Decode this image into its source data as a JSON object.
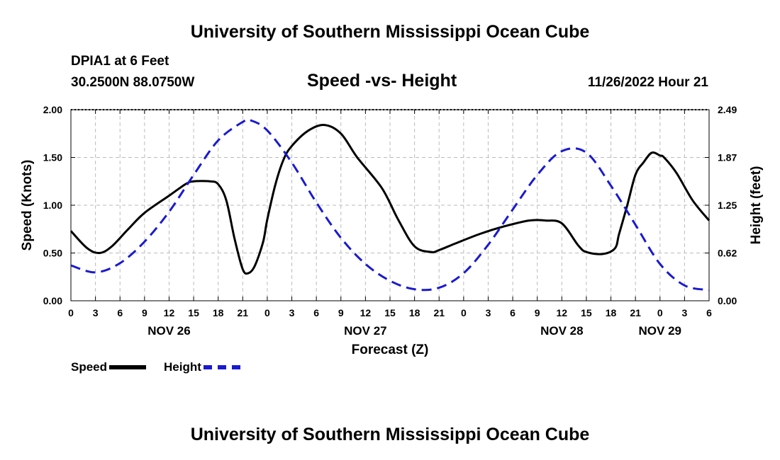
{
  "header": {
    "title": "University of Southern Mississippi Ocean Cube",
    "station": "DPIA1 at 6 Feet",
    "coords": "30.2500N  88.0750W",
    "subtitle": "Speed -vs- Height",
    "datetime": "11/26/2022 Hour 21"
  },
  "footer": {
    "title": "University of Southern Mississippi Ocean Cube"
  },
  "chart_data": {
    "type": "line",
    "xlabel": "Forecast (Z)",
    "ylabel_left": "Speed (Knots)",
    "ylabel_right": "Height (feet)",
    "x_unit": "hours since Nov 26 00Z",
    "xlim": [
      0,
      78
    ],
    "ylim_left": [
      0,
      2
    ],
    "ylim_right": [
      0,
      2.49
    ],
    "y_ticks_left": [
      "0.00",
      "0.50",
      "1.00",
      "1.50",
      "2.00"
    ],
    "y_ticks_right": [
      "0.00",
      "0.62",
      "1.25",
      "1.87",
      "2.49"
    ],
    "x_ticks": [
      "0",
      "3",
      "6",
      "9",
      "12",
      "15",
      "18",
      "21",
      "0",
      "3",
      "6",
      "9",
      "12",
      "15",
      "18",
      "21",
      "0",
      "3",
      "6",
      "9",
      "12",
      "15",
      "18",
      "21",
      "0",
      "3",
      "6"
    ],
    "day_labels": [
      {
        "label": "NOV 26",
        "hour": 12
      },
      {
        "label": "NOV 27",
        "hour": 36
      },
      {
        "label": "NOV 28",
        "hour": 60
      },
      {
        "label": "NOV 29",
        "hour": 72
      }
    ],
    "grid": true,
    "series": [
      {
        "name": "Speed",
        "color": "#000000",
        "style": "solid",
        "axis": "left",
        "x": [
          0,
          2,
          3.5,
          5,
          7,
          9,
          12,
          14,
          15,
          17,
          18,
          19,
          20,
          21,
          21.7,
          22.5,
          23.5,
          24,
          25,
          26,
          27,
          29,
          31,
          33,
          35,
          38,
          40,
          42,
          44,
          45,
          47,
          50,
          53,
          56,
          58,
          60,
          62,
          63,
          65,
          66.5,
          67,
          68,
          69,
          70,
          71,
          72,
          72.5,
          74,
          76,
          78
        ],
        "y": [
          0.73,
          0.55,
          0.5,
          0.57,
          0.75,
          0.92,
          1.1,
          1.22,
          1.25,
          1.25,
          1.22,
          1.05,
          0.65,
          0.33,
          0.29,
          0.37,
          0.62,
          0.85,
          1.22,
          1.48,
          1.62,
          1.78,
          1.84,
          1.75,
          1.5,
          1.18,
          0.85,
          0.57,
          0.51,
          0.53,
          0.6,
          0.7,
          0.78,
          0.84,
          0.84,
          0.81,
          0.58,
          0.51,
          0.49,
          0.55,
          0.7,
          1.0,
          1.32,
          1.45,
          1.55,
          1.52,
          1.5,
          1.34,
          1.05,
          0.84
        ]
      },
      {
        "name": "Height",
        "color": "#1a1ad0",
        "style": "dashed",
        "axis": "right",
        "x": [
          0,
          3,
          6,
          9,
          12,
          15,
          18,
          21,
          22,
          24,
          27,
          30,
          33,
          36,
          39,
          42,
          45,
          48,
          51,
          54,
          57,
          60,
          63,
          66,
          69,
          72,
          75,
          78
        ],
        "y": [
          0.46,
          0.37,
          0.49,
          0.77,
          1.16,
          1.64,
          2.09,
          2.33,
          2.35,
          2.22,
          1.8,
          1.28,
          0.82,
          0.48,
          0.26,
          0.15,
          0.17,
          0.36,
          0.73,
          1.19,
          1.64,
          1.95,
          1.93,
          1.5,
          0.99,
          0.48,
          0.2,
          0.14
        ]
      }
    ]
  },
  "legend": {
    "speed_label": "Speed",
    "height_label": "Height"
  }
}
